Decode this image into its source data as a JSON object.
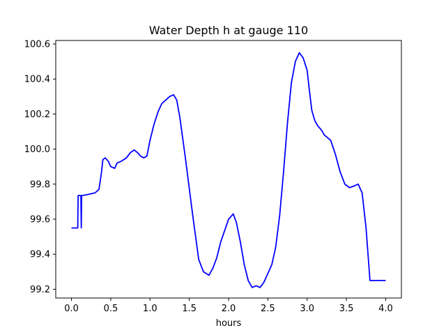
{
  "chart_data": {
    "type": "line",
    "title": "Water Depth h at gauge 110",
    "xlabel": "hours",
    "ylabel": "",
    "xlim": [
      -0.2,
      4.2
    ],
    "ylim": [
      99.15,
      100.62
    ],
    "xticks": [
      0.0,
      0.5,
      1.0,
      1.5,
      2.0,
      2.5,
      3.0,
      3.5,
      4.0
    ],
    "xtick_labels": [
      "0.0",
      "0.5",
      "1.0",
      "1.5",
      "2.0",
      "2.5",
      "3.0",
      "3.5",
      "4.0"
    ],
    "yticks": [
      99.2,
      99.4,
      99.6,
      99.8,
      100.0,
      100.2,
      100.4,
      100.6
    ],
    "ytick_labels": [
      "99.2",
      "99.4",
      "99.6",
      "99.8",
      "100.0",
      "100.2",
      "100.4",
      "100.6"
    ],
    "grid": false,
    "series": [
      {
        "color": "#0000ff",
        "x": [
          0.0,
          0.08,
          0.085,
          0.1,
          0.12,
          0.125,
          0.13,
          0.135,
          0.14,
          0.2,
          0.3,
          0.35,
          0.38,
          0.4,
          0.43,
          0.47,
          0.5,
          0.55,
          0.58,
          0.63,
          0.7,
          0.75,
          0.8,
          0.84,
          0.88,
          0.92,
          0.96,
          1.0,
          1.05,
          1.1,
          1.15,
          1.2,
          1.25,
          1.3,
          1.34,
          1.38,
          1.45,
          1.55,
          1.62,
          1.68,
          1.75,
          1.8,
          1.85,
          1.9,
          2.0,
          2.06,
          2.1,
          2.15,
          2.2,
          2.25,
          2.3,
          2.35,
          2.4,
          2.45,
          2.5,
          2.55,
          2.6,
          2.65,
          2.7,
          2.75,
          2.8,
          2.85,
          2.9,
          2.95,
          3.0,
          3.03,
          3.06,
          3.1,
          3.14,
          3.18,
          3.22,
          3.3,
          3.36,
          3.42,
          3.48,
          3.54,
          3.6,
          3.65,
          3.7,
          3.75,
          3.8,
          3.85,
          3.9,
          3.95,
          4.0
        ],
        "y": [
          99.55,
          99.55,
          99.735,
          99.735,
          99.735,
          99.55,
          99.735,
          99.735,
          99.735,
          99.74,
          99.75,
          99.77,
          99.86,
          99.94,
          99.95,
          99.93,
          99.9,
          99.89,
          99.92,
          99.93,
          99.95,
          99.98,
          99.995,
          99.98,
          99.96,
          99.95,
          99.96,
          100.05,
          100.14,
          100.21,
          100.26,
          100.28,
          100.3,
          100.31,
          100.28,
          100.18,
          99.95,
          99.6,
          99.37,
          99.3,
          99.28,
          99.32,
          99.38,
          99.47,
          99.6,
          99.63,
          99.58,
          99.47,
          99.34,
          99.25,
          99.21,
          99.22,
          99.21,
          99.24,
          99.29,
          99.34,
          99.44,
          99.62,
          99.87,
          100.15,
          100.38,
          100.5,
          100.55,
          100.52,
          100.45,
          100.33,
          100.22,
          100.16,
          100.13,
          100.11,
          100.08,
          100.05,
          99.97,
          99.87,
          99.8,
          99.78,
          99.79,
          99.8,
          99.75,
          99.55,
          99.25,
          99.25,
          99.25,
          99.25,
          99.25
        ]
      }
    ]
  }
}
